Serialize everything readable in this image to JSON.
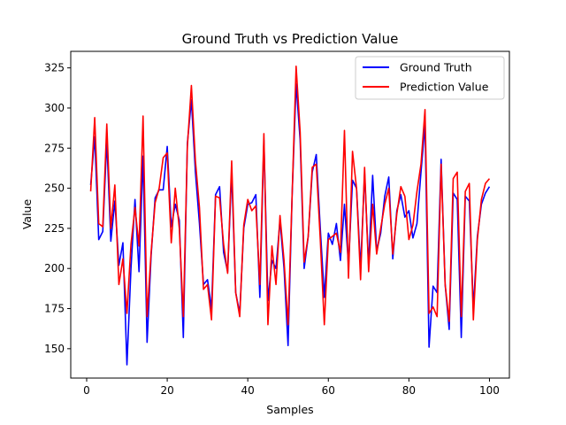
{
  "chart_data": {
    "type": "line",
    "title": "Ground Truth vs Prediction Value",
    "xlabel": "Samples",
    "ylabel": "Value",
    "xlim": [
      -3.95,
      104.95
    ],
    "ylim": [
      131.7,
      335.3
    ],
    "xticks": [
      0,
      20,
      40,
      60,
      80,
      100
    ],
    "yticks": [
      150,
      175,
      200,
      225,
      250,
      275,
      300,
      325
    ],
    "grid": false,
    "legend": {
      "position": "top-right"
    },
    "x": [
      1,
      2,
      3,
      4,
      5,
      6,
      7,
      8,
      9,
      10,
      11,
      12,
      13,
      14,
      15,
      16,
      17,
      18,
      19,
      20,
      21,
      22,
      23,
      24,
      25,
      26,
      27,
      28,
      29,
      30,
      31,
      32,
      33,
      34,
      35,
      36,
      37,
      38,
      39,
      40,
      41,
      42,
      43,
      44,
      45,
      46,
      47,
      48,
      49,
      50,
      51,
      52,
      53,
      54,
      55,
      56,
      57,
      58,
      59,
      60,
      61,
      62,
      63,
      64,
      65,
      66,
      67,
      68,
      69,
      70,
      71,
      72,
      73,
      74,
      75,
      76,
      77,
      78,
      79,
      80,
      81,
      82,
      83,
      84,
      85,
      86,
      87,
      88,
      89,
      90,
      91,
      92,
      93,
      94,
      95,
      96,
      97,
      98,
      99,
      100
    ],
    "series": [
      {
        "name": "Ground Truth",
        "color": "#0000ff",
        "values": [
          252,
          282,
          218,
          223,
          280,
          217,
          242,
          202,
          216,
          140,
          200,
          243,
          198,
          270,
          154,
          208,
          244,
          249,
          249,
          276,
          226,
          240,
          230,
          157,
          278,
          305,
          260,
          228,
          190,
          193,
          175,
          246,
          251,
          210,
          198,
          260,
          185,
          172,
          225,
          240,
          241,
          246,
          182,
          280,
          180,
          205,
          200,
          230,
          200,
          152,
          245,
          315,
          280,
          200,
          220,
          260,
          271,
          225,
          182,
          222,
          215,
          228,
          205,
          240,
          202,
          255,
          250,
          200,
          259,
          202,
          258,
          211,
          222,
          245,
          257,
          206,
          236,
          246,
          232,
          236,
          219,
          228,
          260,
          290,
          151,
          189,
          185,
          268,
          190,
          162,
          247,
          243,
          157,
          245,
          242,
          175,
          220,
          240,
          247,
          251
        ]
      },
      {
        "name": "Prediction Value",
        "color": "#ff0000",
        "values": [
          248,
          294,
          228,
          226,
          290,
          225,
          252,
          190,
          206,
          172,
          215,
          238,
          214,
          295,
          170,
          210,
          241,
          250,
          269,
          272,
          216,
          250,
          225,
          170,
          276,
          314,
          267,
          238,
          187,
          190,
          168,
          245,
          244,
          215,
          197,
          267,
          185,
          170,
          227,
          243,
          236,
          239,
          190,
          284,
          165,
          214,
          190,
          233,
          205,
          165,
          245,
          326,
          285,
          204,
          220,
          263,
          265,
          218,
          165,
          218,
          220,
          222,
          210,
          286,
          194,
          273,
          250,
          193,
          263,
          198,
          240,
          209,
          225,
          240,
          250,
          209,
          234,
          251,
          245,
          218,
          227,
          248,
          265,
          299,
          172,
          176,
          170,
          265,
          190,
          167,
          256,
          260,
          170,
          248,
          253,
          168,
          218,
          243,
          253,
          256
        ]
      }
    ]
  }
}
